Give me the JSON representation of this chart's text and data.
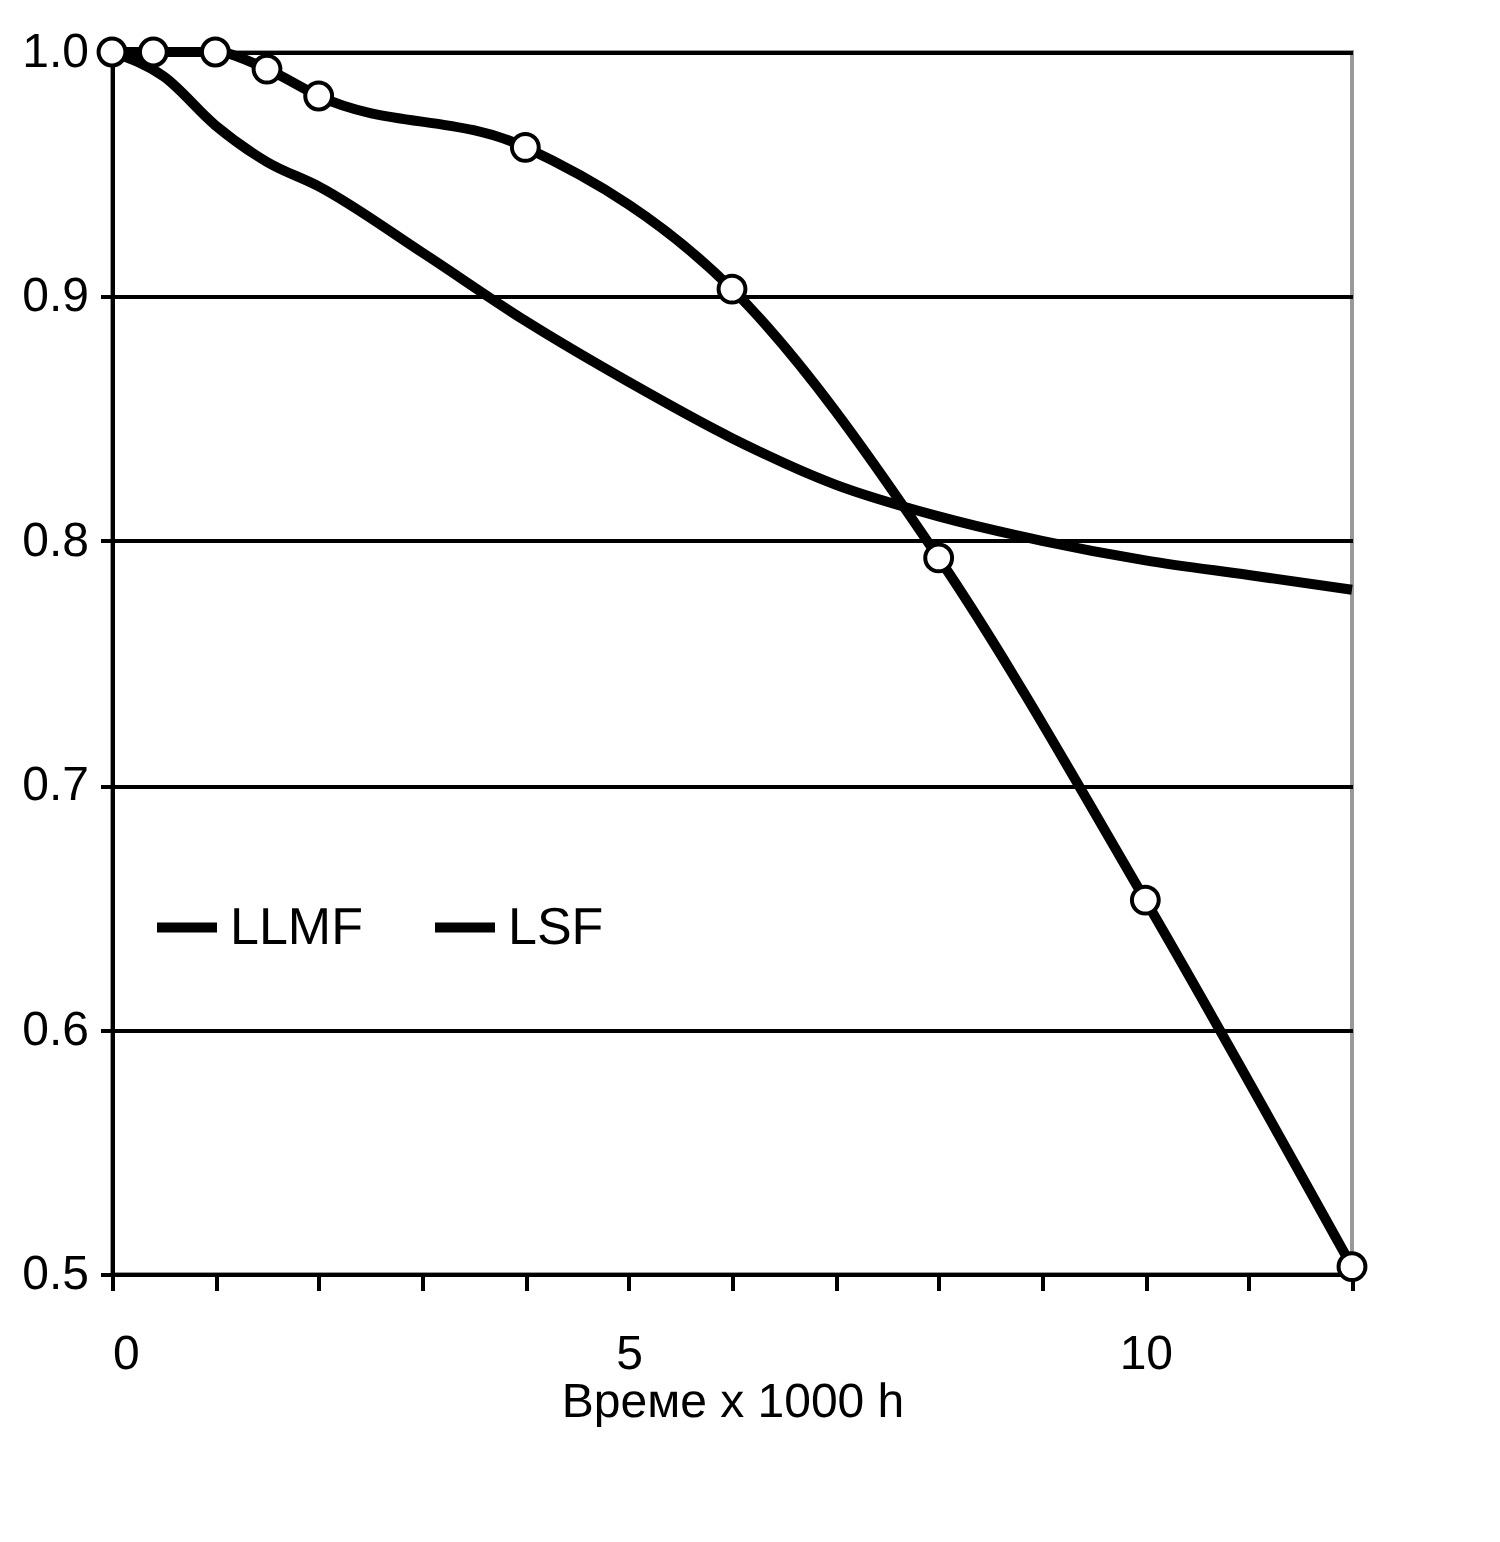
{
  "chart_data": {
    "type": "line",
    "xlabel": "Време x 1000 h",
    "xlim": [
      0,
      12
    ],
    "xticks": [
      0,
      {
        "value": 1,
        "label": null
      },
      {
        "value": 2,
        "label": null
      },
      {
        "value": 3,
        "label": null
      },
      {
        "value": 4,
        "label": null
      },
      5,
      {
        "value": 6,
        "label": null
      },
      {
        "value": 7,
        "label": null
      },
      {
        "value": 8,
        "label": null
      },
      {
        "value": 9,
        "label": null
      },
      10,
      {
        "value": 11,
        "label": null
      },
      {
        "value": 12,
        "label": null
      }
    ],
    "ylim": [
      0.5,
      1.0
    ],
    "yticks": [
      0.5,
      0.6,
      0.7,
      0.8,
      0.9,
      {
        "value": 1,
        "label": "1.0"
      }
    ],
    "grid": "y",
    "legend": "left",
    "line_style": "solid",
    "series": [
      {
        "name": "LLMF",
        "color": "#000000",
        "marker": "none",
        "x": [
          0,
          0.5,
          1,
          1.5,
          2,
          3,
          4,
          5,
          6,
          7,
          8,
          9,
          10,
          11,
          12
        ],
        "values": [
          1.0,
          0.99,
          0.97,
          0.955,
          0.945,
          0.918,
          0.89,
          0.865,
          0.842,
          0.823,
          0.81,
          0.8,
          0.792,
          0.786,
          0.78
        ]
      },
      {
        "name": "LSF",
        "color": "#000000",
        "marker": "circle",
        "x": [
          0,
          0.4,
          1,
          1.5,
          2,
          4,
          6,
          8,
          10,
          12
        ],
        "values": [
          1.0,
          1.0,
          1.0,
          0.993,
          0.982,
          0.961,
          0.903,
          0.793,
          0.653,
          0.503
        ]
      }
    ]
  }
}
